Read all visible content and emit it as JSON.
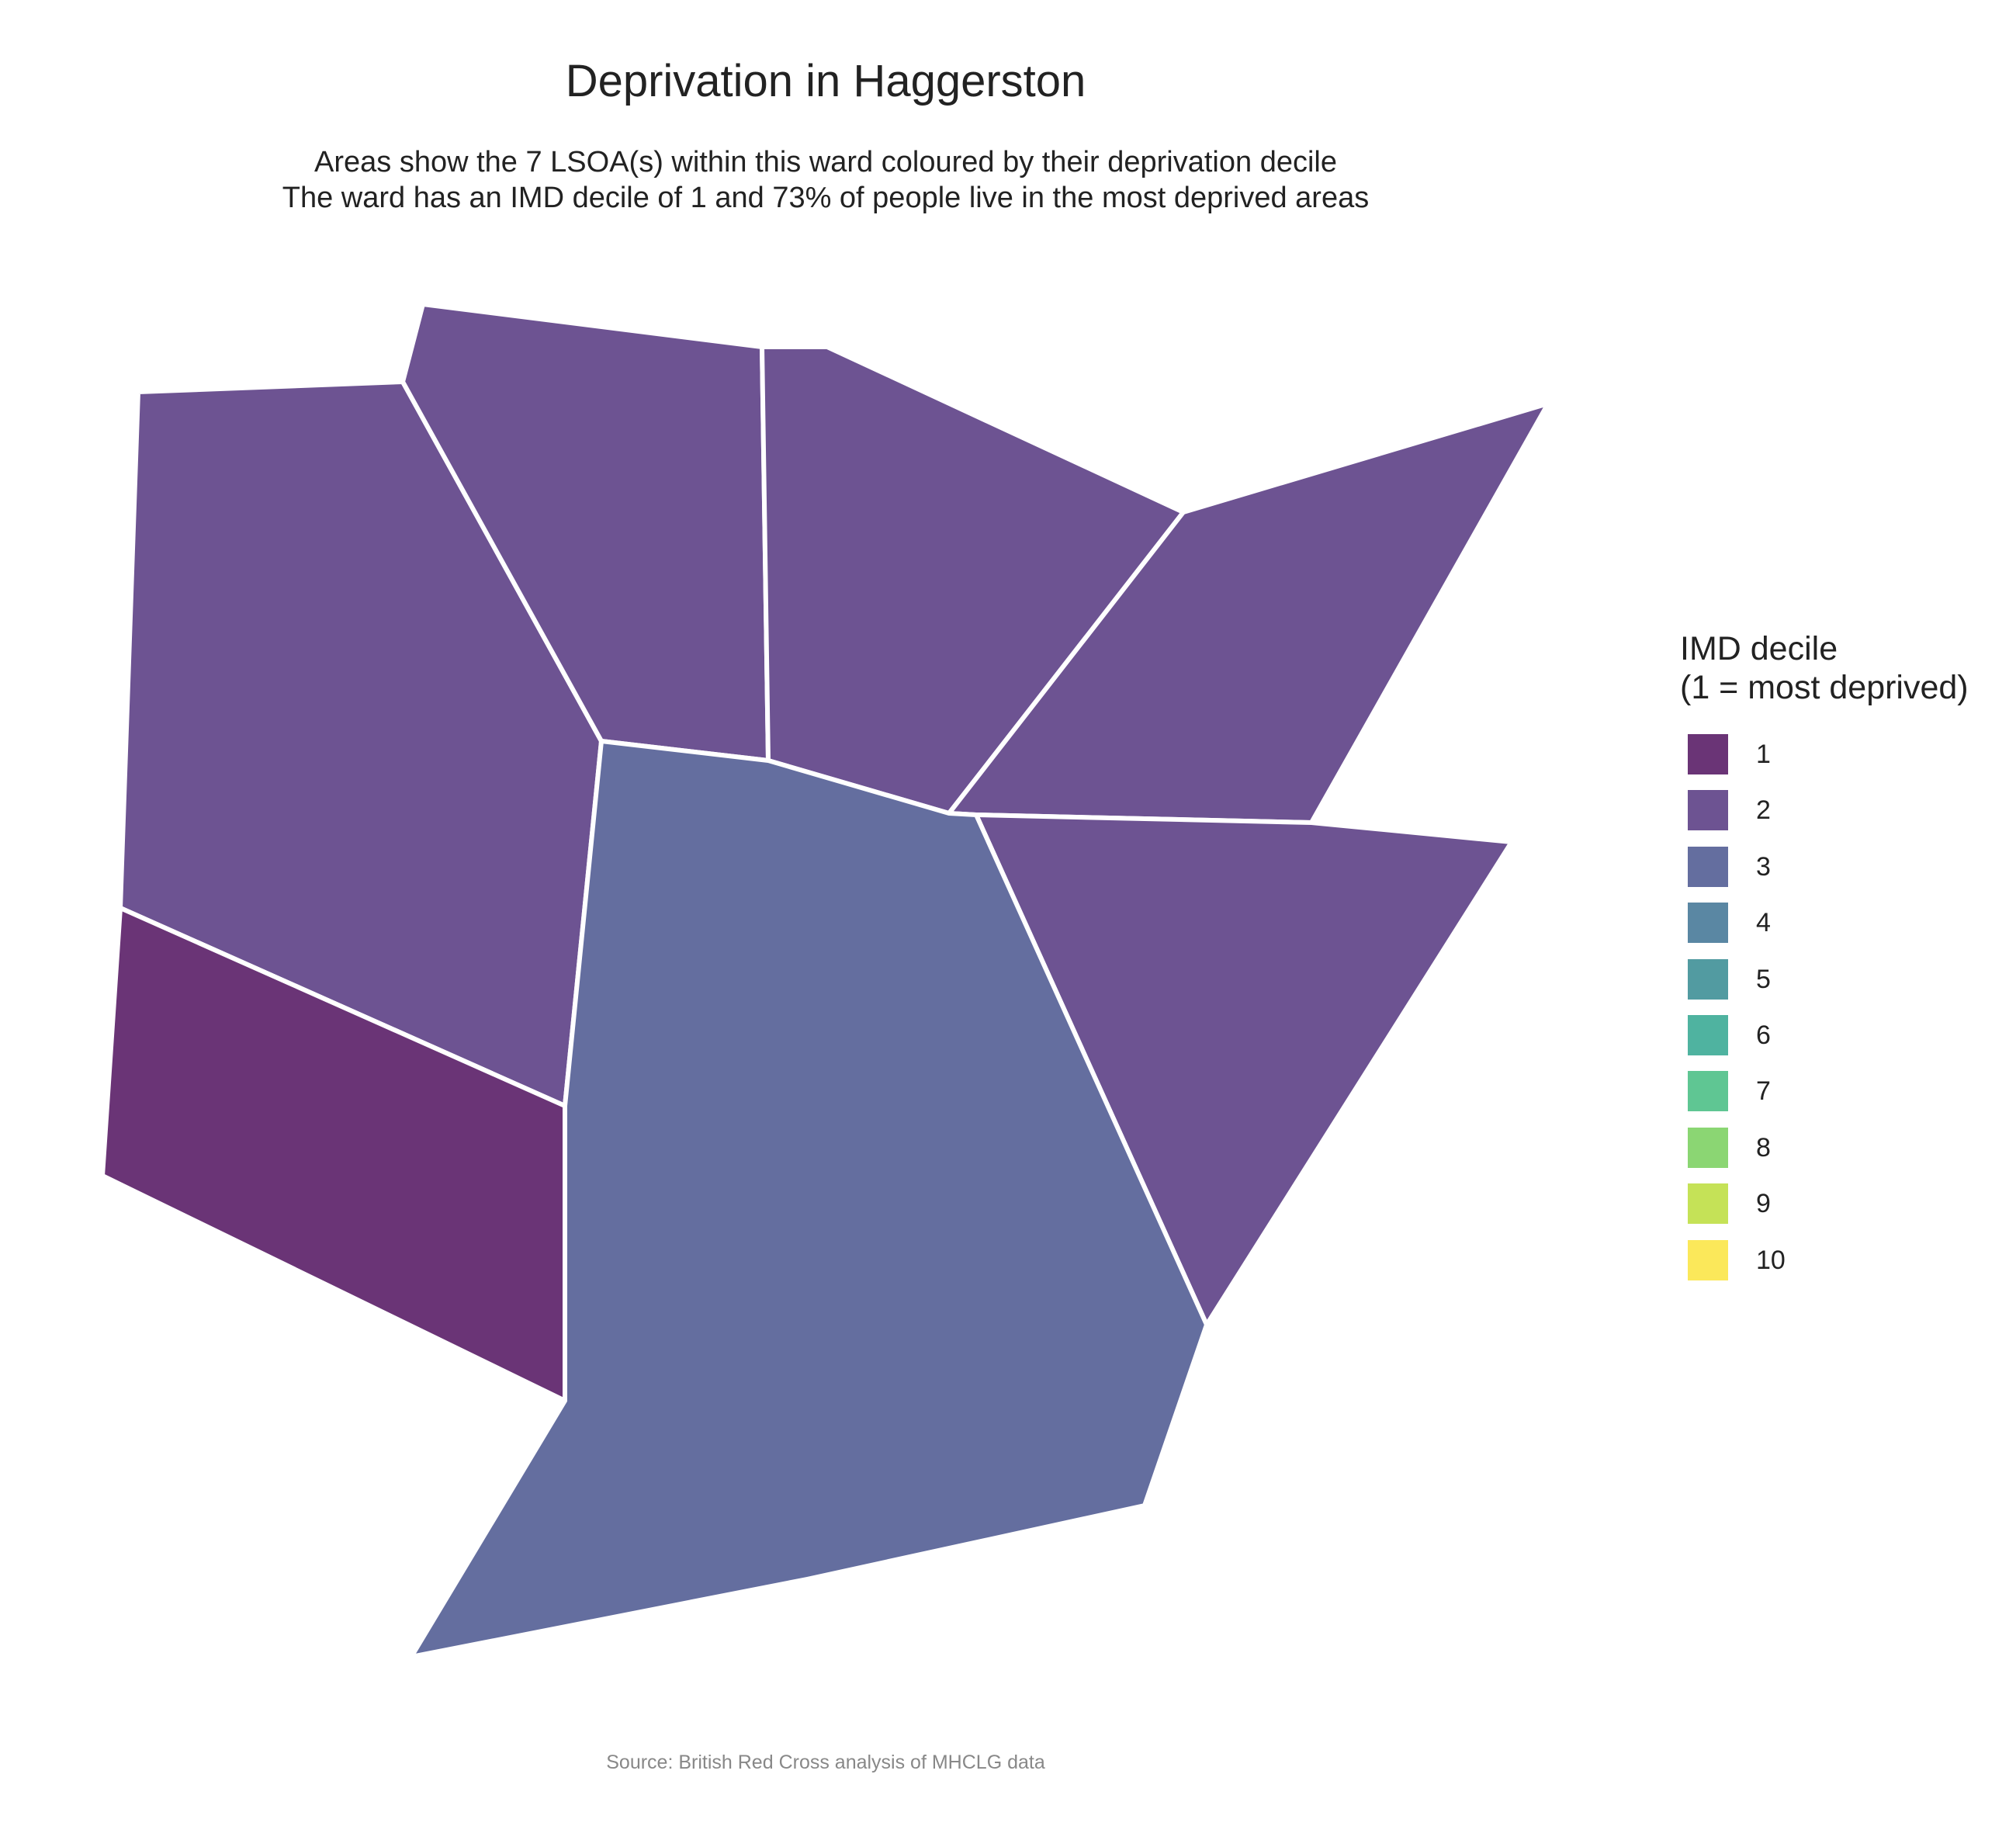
{
  "title": "Deprivation in Haggerston",
  "subtitle": [
    "Areas show the 7 LSOA(s) within this ward coloured by their deprivation decile",
    "The ward has an IMD decile of 1 and 73% of people live in the most deprived areas"
  ],
  "legend": {
    "title": [
      "IMD decile",
      "(1 = most deprived)"
    ],
    "items": [
      {
        "label": "1",
        "color": "#6a3476"
      },
      {
        "label": "2",
        "color": "#6d5392"
      },
      {
        "label": "3",
        "color": "#646e9f"
      },
      {
        "label": "4",
        "color": "#5a87a3"
      },
      {
        "label": "5",
        "color": "#529ba1"
      },
      {
        "label": "6",
        "color": "#4fb3a0"
      },
      {
        "label": "7",
        "color": "#5fc693"
      },
      {
        "label": "8",
        "color": "#8bd673"
      },
      {
        "label": "9",
        "color": "#c5e257"
      },
      {
        "label": "10",
        "color": "#fbe85a"
      }
    ]
  },
  "areas": [
    {
      "name": "lsoa-west",
      "decile": 2
    },
    {
      "name": "lsoa-north-center",
      "decile": 2
    },
    {
      "name": "lsoa-north-east",
      "decile": 2
    },
    {
      "name": "lsoa-far-east",
      "decile": 2
    },
    {
      "name": "lsoa-east",
      "decile": 2
    },
    {
      "name": "lsoa-south-west",
      "decile": 1
    },
    {
      "name": "lsoa-center-south",
      "decile": 3
    }
  ],
  "caption": "Source: British Red Cross analysis of MHCLG data"
}
